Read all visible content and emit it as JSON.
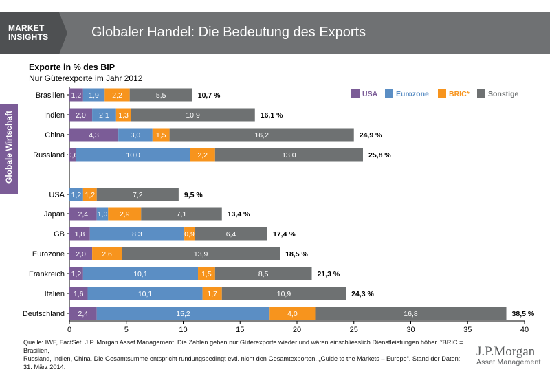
{
  "header": {
    "brand_line1": "MARKET",
    "brand_line2": "INSIGHTS",
    "title": "Globaler Handel: Die Bedeutung des Exports"
  },
  "side_tab": {
    "label": "Globale Wirtschaft"
  },
  "colors": {
    "USA": "#7b5c97",
    "Eurozone": "#5b8ec4",
    "BRIC": "#f7941d",
    "Sonstige": "#6e7172"
  },
  "chart_data": {
    "type": "bar",
    "orientation": "horizontal",
    "stacked": true,
    "title": "Exporte in % des BIP",
    "subtitle": "Nur Güterexporte im Jahr 2012",
    "categories": [
      "Brasilien",
      "Indien",
      "China",
      "Russland",
      "USA",
      "Japan",
      "GB",
      "Eurozone",
      "Frankreich",
      "Italien",
      "Deutschland"
    ],
    "series": [
      {
        "name": "USA",
        "labels": [
          "1,2",
          "2,0",
          "4,3",
          "0,6",
          "",
          "2,4",
          "1,8",
          "2,0",
          "1,2",
          "1,6",
          "2,4"
        ],
        "values": [
          1.2,
          2.0,
          4.3,
          0.6,
          0,
          2.4,
          1.8,
          2.0,
          1.2,
          1.6,
          2.4
        ]
      },
      {
        "name": "Eurozone",
        "labels": [
          "1,9",
          "2,1",
          "3,0",
          "10,0",
          "1,2",
          "1,0",
          "8,3",
          "",
          "10,1",
          "10,1",
          "15,2"
        ],
        "values": [
          1.9,
          2.1,
          3.0,
          10.0,
          1.2,
          1.0,
          8.3,
          0,
          10.1,
          10.1,
          15.2
        ]
      },
      {
        "name": "BRIC*",
        "labels": [
          "2,2",
          "1,3",
          "1,5",
          "2,2",
          "1,2",
          "2,9",
          "0,9",
          "2,6",
          "1,5",
          "1,7",
          "4,0"
        ],
        "values": [
          2.2,
          1.3,
          1.5,
          2.2,
          1.2,
          2.9,
          0.9,
          2.6,
          1.5,
          1.7,
          4.0
        ]
      },
      {
        "name": "Sonstige",
        "labels": [
          "5,5",
          "10,9",
          "16,2",
          "13,0",
          "7,2",
          "7,1",
          "6,4",
          "13,9",
          "8,5",
          "10,9",
          "16,8"
        ],
        "values": [
          5.5,
          10.9,
          16.2,
          13.0,
          7.2,
          7.1,
          6.4,
          13.9,
          8.5,
          10.9,
          16.8
        ]
      }
    ],
    "totals": [
      "10,7 %",
      "16,1 %",
      "24,9 %",
      "25,8 %",
      "9,5 %",
      "13,4 %",
      "17,4 %",
      "18,5 %",
      "21,3 %",
      "24,3 %",
      "38,5 %"
    ],
    "xlim": [
      0,
      40
    ],
    "xticks": [
      0,
      5,
      10,
      15,
      20,
      25,
      30,
      35,
      40
    ],
    "xtick_labels": [
      "0",
      "5",
      "10",
      "15",
      "20",
      "25",
      "30",
      "35",
      "40"
    ],
    "legend": [
      "USA",
      "Eurozone",
      "BRIC*",
      "Sonstige"
    ],
    "legend_position": "top-right"
  },
  "footer": {
    "source_line1": "Quelle: IWF, FactSet, J.P. Morgan Asset Management. Die Zahlen geben nur Güterexporte wieder und wären einschliesslich Dienstleistungen höher. *BRIC = Brasilien,",
    "source_line2": "Russland, Indien, China. Die Gesamtsumme entspricht rundungsbedingt evtl. nicht den Gesamtexporten. „Guide to the Markets – Europe“. Stand der Daten: 31. März 2014.",
    "logo_main": "J.P.Morgan",
    "logo_sub": "Asset Management"
  }
}
